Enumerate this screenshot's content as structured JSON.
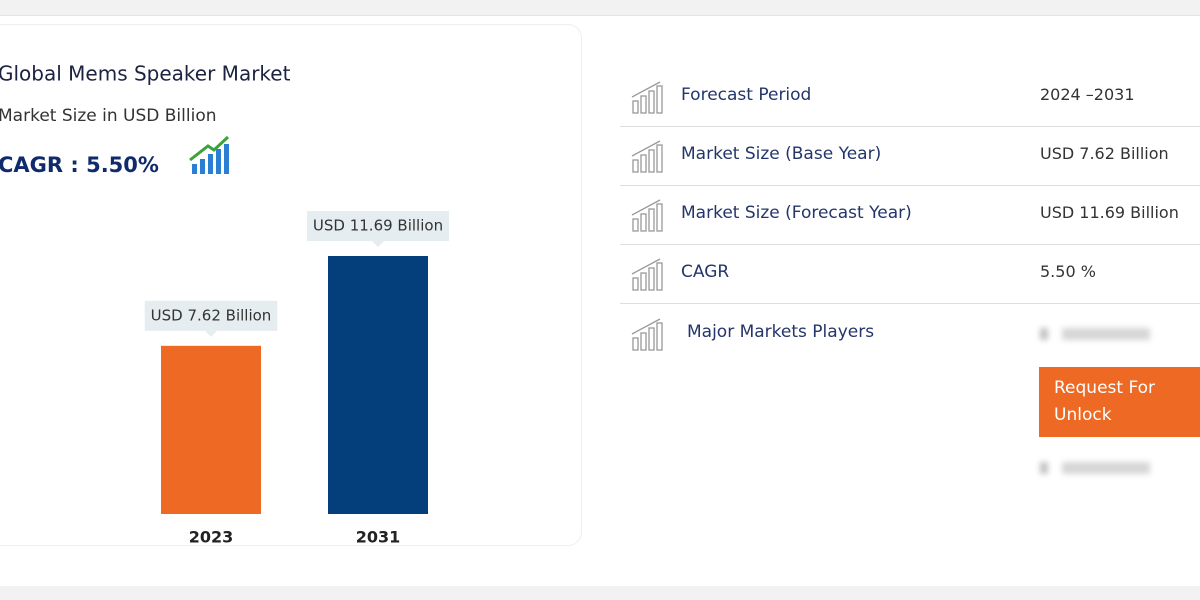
{
  "chart_data": {
    "type": "bar",
    "title": "Global Mems Speaker Market",
    "subtitle": "Market Size in USD Billion",
    "cagr": "CAGR : 5.50%",
    "categories": [
      "2023",
      "2031"
    ],
    "values": [
      7.62,
      11.69
    ],
    "value_labels": [
      "USD 7.62 Billion",
      "USD 11.69 Billion"
    ],
    "colors": [
      "#ee6a24",
      "#043f7c"
    ]
  },
  "table": {
    "rows": [
      [
        "Forecast Period",
        "2024 –2031"
      ],
      [
        "Market Size (Base Year)",
        "USD 7.62 Billion"
      ],
      [
        "Market Size (Forecast Year)",
        "USD 11.69 Billion"
      ],
      [
        "CAGR",
        "5.50 %"
      ],
      [
        "Major Markets Players"
      ]
    ],
    "button": "Request For Unlock"
  }
}
